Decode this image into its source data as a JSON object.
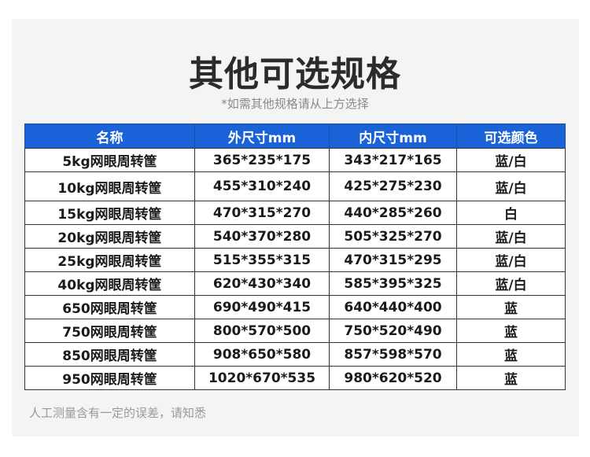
{
  "title": "其他可选规格",
  "subtitle": "*如需其他规格请从上方选择",
  "table": {
    "headers": [
      "名称",
      "外尺寸mm",
      "内尺寸mm",
      "可选颜色"
    ],
    "rows": [
      [
        "5kg网眼周转筐",
        "365*235*175",
        "343*217*165",
        "蓝/白"
      ],
      [
        "10kg网眼周转筐",
        "455*310*240",
        "425*275*230",
        "蓝/白"
      ],
      [
        "15kg网眼周转筐",
        "470*315*270",
        "440*285*260",
        "白"
      ],
      [
        "20kg网眼周转筐",
        "540*370*280",
        "505*325*270",
        "蓝/白"
      ],
      [
        "25kg网眼周转筐",
        "515*355*315",
        "470*315*295",
        "蓝/白"
      ],
      [
        "40kg网眼周转筐",
        "620*430*340",
        "585*395*325",
        "蓝/白"
      ],
      [
        "650网眼周转筐",
        "690*490*415",
        "640*440*400",
        "蓝"
      ],
      [
        "750网眼周转筐",
        "800*570*500",
        "750*520*490",
        "蓝"
      ],
      [
        "850网眼周转筐",
        "908*650*580",
        "857*598*570",
        "蓝"
      ],
      [
        "950网眼周转筐",
        "1020*670*535",
        "980*620*520",
        "蓝"
      ]
    ]
  },
  "footer": "人工测量含有一定的误差，请知悉",
  "colors": {
    "header_bg": "#1a62d8",
    "panel_bg": "#f4f4f4"
  }
}
